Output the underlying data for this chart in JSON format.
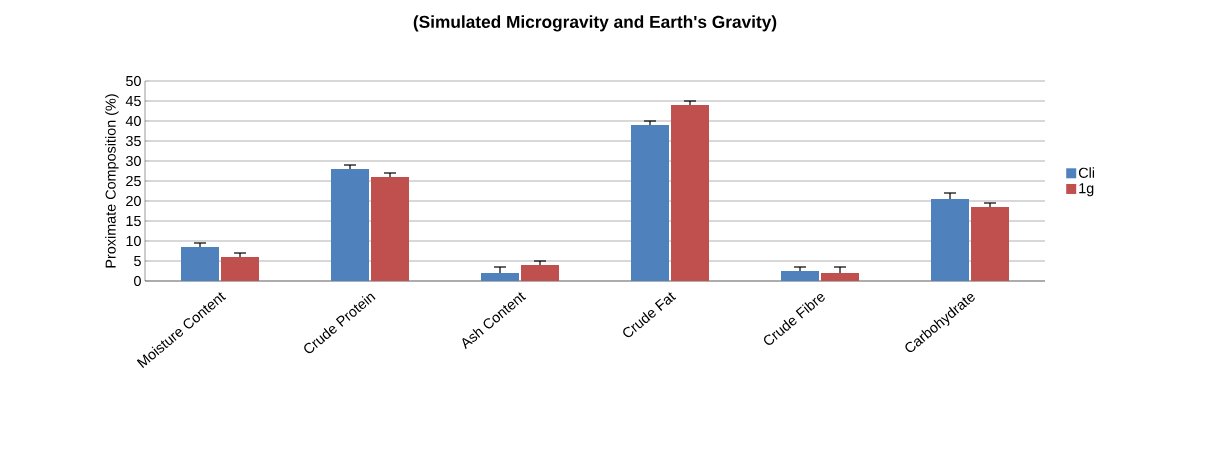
{
  "chart_data": {
    "type": "bar",
    "title": "(Simulated Microgravity and Earth's Gravity)",
    "ylabel": "Proximate Composition (%)",
    "categories": [
      "Moisture Content",
      "Crude Protein",
      "Ash Content",
      "Crude Fat",
      "Crude Fibre",
      "Carbohydrate"
    ],
    "series": [
      {
        "name": "Cli",
        "color": "#4f81bd",
        "values": [
          8.5,
          28,
          2,
          39,
          2.5,
          20.5
        ],
        "errors": [
          1,
          1,
          1.5,
          1,
          1,
          1.5
        ]
      },
      {
        "name": "1g",
        "color": "#c0504d",
        "values": [
          6,
          26,
          4,
          44,
          2,
          18.5
        ],
        "errors": [
          1,
          1,
          1,
          1,
          1.5,
          1
        ]
      }
    ],
    "ylim": [
      0,
      50
    ],
    "yticks": [
      0,
      5,
      10,
      15,
      20,
      25,
      30,
      35,
      40,
      45,
      50
    ],
    "grid": "y",
    "legend": "right"
  }
}
